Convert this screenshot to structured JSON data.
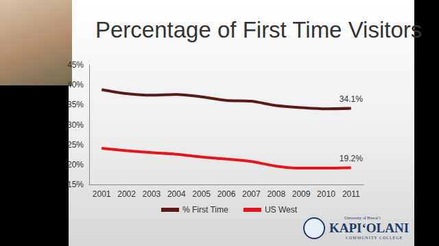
{
  "chart_data": {
    "type": "line",
    "title": "Percentage of First Time Visitors",
    "categories": [
      "2001",
      "2002",
      "2003",
      "2004",
      "2005",
      "2006",
      "2007",
      "2008",
      "2009",
      "2010",
      "2011"
    ],
    "series": [
      {
        "name": "% First Time",
        "color": "#5a1a16",
        "values": [
          38.8,
          37.8,
          37.4,
          37.6,
          37.0,
          36.1,
          35.9,
          34.8,
          34.3,
          34.0,
          34.1
        ],
        "value_labels": [
          null,
          null,
          null,
          null,
          null,
          null,
          null,
          null,
          null,
          null,
          "34.1%"
        ]
      },
      {
        "name": "US West",
        "color": "#e8141b",
        "values": [
          24.1,
          23.5,
          23.0,
          22.6,
          21.9,
          21.4,
          20.8,
          19.6,
          19.1,
          19.1,
          19.2
        ],
        "value_labels": [
          null,
          null,
          null,
          null,
          null,
          null,
          null,
          null,
          null,
          null,
          "19.2%"
        ]
      }
    ],
    "ylim": [
      15,
      45
    ],
    "yticks": [
      {
        "value": 15,
        "label": "15%"
      },
      {
        "value": 20,
        "label": "20%"
      },
      {
        "value": 25,
        "label": "25%"
      },
      {
        "value": 30,
        "label": "30%"
      },
      {
        "value": 35,
        "label": "35%"
      },
      {
        "value": 40,
        "label": "40%"
      },
      {
        "value": 45,
        "label": "45%"
      }
    ],
    "grid": false,
    "legend": "bottom"
  },
  "logo": {
    "lines": [
      "University of Hawaiʻi",
      "KAPIʻOLANI",
      "COMMUNITY COLLEGE"
    ]
  }
}
